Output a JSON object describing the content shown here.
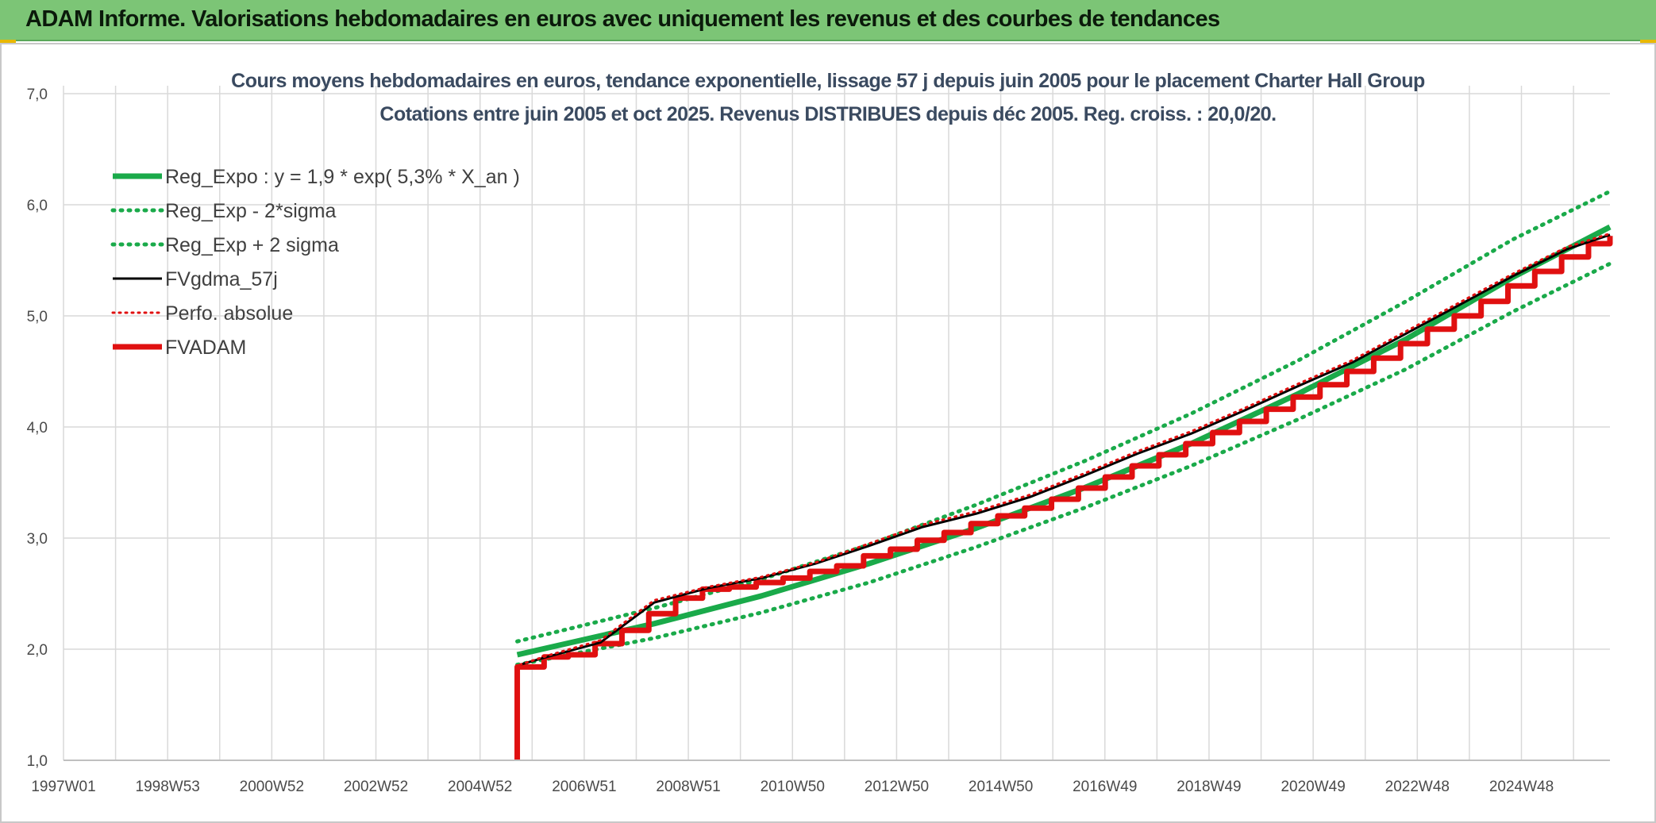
{
  "banner": {
    "title": "ADAM Informe. Valorisations hebdomadaires en euros avec uniquement les revenus et des courbes de tendances"
  },
  "colors": {
    "banner_bg": "#7cc576",
    "reg_green": "#1aaa4a",
    "red": "#e01010",
    "black": "#000000",
    "grid": "#d9d9d9"
  },
  "chart_data": {
    "type": "line",
    "title": "Cours moyens hebdomadaires en euros, tendance exponentielle, lissage 57 j depuis juin 2005 pour le placement Charter Hall Group",
    "subtitle": "Cotations entre juin 2005 et oct 2025. Revenus DISTRIBUES depuis déc 2005. Reg. croiss. : 20,0/20.",
    "xlabel": "",
    "ylabel": "",
    "x_ticks": [
      "1997W01",
      "1998W53",
      "2000W52",
      "2002W52",
      "2004W52",
      "2006W51",
      "2008W51",
      "2010W50",
      "2012W50",
      "2014W50",
      "2016W49",
      "2018W49",
      "2020W49",
      "2022W48",
      "2024W48"
    ],
    "xlim": [
      1997.0,
      2025.8
    ],
    "ylim": [
      1.0,
      7.0
    ],
    "y_ticks": [
      "1,0",
      "2,0",
      "3,0",
      "4,0",
      "5,0",
      "6,0",
      "7,0"
    ],
    "grid": true,
    "legend_position": "top-left",
    "series": [
      {
        "name": "Reg_Expo : y = 1,9 * exp( 5,3% *  X_an )",
        "style": "solid-green-thick",
        "x": [
          2005.45,
          2008.0,
          2010.0,
          2012.0,
          2014.0,
          2016.0,
          2018.0,
          2020.0,
          2022.0,
          2024.0,
          2025.8
        ],
        "values": [
          1.95,
          2.23,
          2.48,
          2.77,
          3.09,
          3.45,
          3.85,
          4.3,
          4.79,
          5.35,
          5.8
        ]
      },
      {
        "name": "Reg_Exp - 2*sigma",
        "style": "dotted-green",
        "x": [
          2005.45,
          2008.0,
          2010.0,
          2012.0,
          2014.0,
          2016.0,
          2018.0,
          2020.0,
          2022.0,
          2024.0,
          2025.8
        ],
        "values": [
          1.86,
          2.1,
          2.33,
          2.6,
          2.92,
          3.27,
          3.65,
          4.07,
          4.52,
          5.04,
          5.47
        ]
      },
      {
        "name": "Reg_Exp + 2 sigma",
        "style": "dotted-green",
        "x": [
          2005.45,
          2008.0,
          2010.0,
          2012.0,
          2014.0,
          2016.0,
          2018.0,
          2020.0,
          2022.0,
          2024.0,
          2025.8
        ],
        "values": [
          2.07,
          2.37,
          2.63,
          2.94,
          3.3,
          3.69,
          4.12,
          4.6,
          5.13,
          5.69,
          6.12
        ]
      },
      {
        "name": "FVgdma_57j",
        "style": "solid-black",
        "x": [
          2005.5,
          2006.0,
          2007.0,
          2008.0,
          2009.0,
          2010.0,
          2011.0,
          2012.0,
          2013.0,
          2014.0,
          2015.0,
          2016.0,
          2017.0,
          2018.0,
          2019.0,
          2020.0,
          2021.0,
          2022.0,
          2023.0,
          2024.0,
          2025.0,
          2025.8
        ],
        "values": [
          1.86,
          1.93,
          2.06,
          2.42,
          2.55,
          2.64,
          2.77,
          2.93,
          3.1,
          3.22,
          3.37,
          3.56,
          3.76,
          3.94,
          4.15,
          4.37,
          4.58,
          4.84,
          5.1,
          5.36,
          5.6,
          5.73
        ]
      },
      {
        "name": "Perfo. absolue",
        "style": "dotted-red",
        "x": [
          2005.5,
          2006.0,
          2007.0,
          2008.0,
          2009.0,
          2010.0,
          2011.0,
          2012.0,
          2013.0,
          2014.0,
          2015.0,
          2016.0,
          2017.0,
          2018.0,
          2019.0,
          2020.0,
          2021.0,
          2022.0,
          2023.0,
          2024.0,
          2025.0,
          2025.8
        ],
        "values": [
          1.86,
          1.94,
          2.08,
          2.44,
          2.56,
          2.65,
          2.78,
          2.95,
          3.12,
          3.24,
          3.39,
          3.58,
          3.78,
          3.96,
          4.17,
          4.39,
          4.6,
          4.86,
          5.12,
          5.38,
          5.62,
          5.74
        ]
      },
      {
        "name": "FVADAM",
        "style": "solid-red-thick-stepped",
        "x": [
          2005.45,
          2005.45,
          2005.95,
          2006.4,
          2006.9,
          2007.4,
          2007.9,
          2008.4,
          2008.9,
          2009.4,
          2009.9,
          2010.4,
          2010.9,
          2011.4,
          2011.9,
          2012.4,
          2012.9,
          2013.4,
          2013.9,
          2014.4,
          2014.9,
          2015.4,
          2015.9,
          2016.4,
          2016.9,
          2017.4,
          2017.9,
          2018.4,
          2018.9,
          2019.4,
          2019.9,
          2020.4,
          2020.9,
          2021.4,
          2021.9,
          2022.4,
          2022.9,
          2023.4,
          2023.9,
          2024.4,
          2024.9,
          2025.4,
          2025.8
        ],
        "values": [
          1.0,
          1.84,
          1.93,
          1.95,
          2.05,
          2.17,
          2.32,
          2.46,
          2.54,
          2.56,
          2.6,
          2.64,
          2.7,
          2.75,
          2.84,
          2.9,
          2.98,
          3.05,
          3.13,
          3.2,
          3.27,
          3.35,
          3.45,
          3.55,
          3.65,
          3.75,
          3.85,
          3.95,
          4.05,
          4.16,
          4.27,
          4.38,
          4.5,
          4.62,
          4.75,
          4.88,
          5.0,
          5.13,
          5.27,
          5.4,
          5.53,
          5.65,
          5.72
        ]
      }
    ]
  }
}
